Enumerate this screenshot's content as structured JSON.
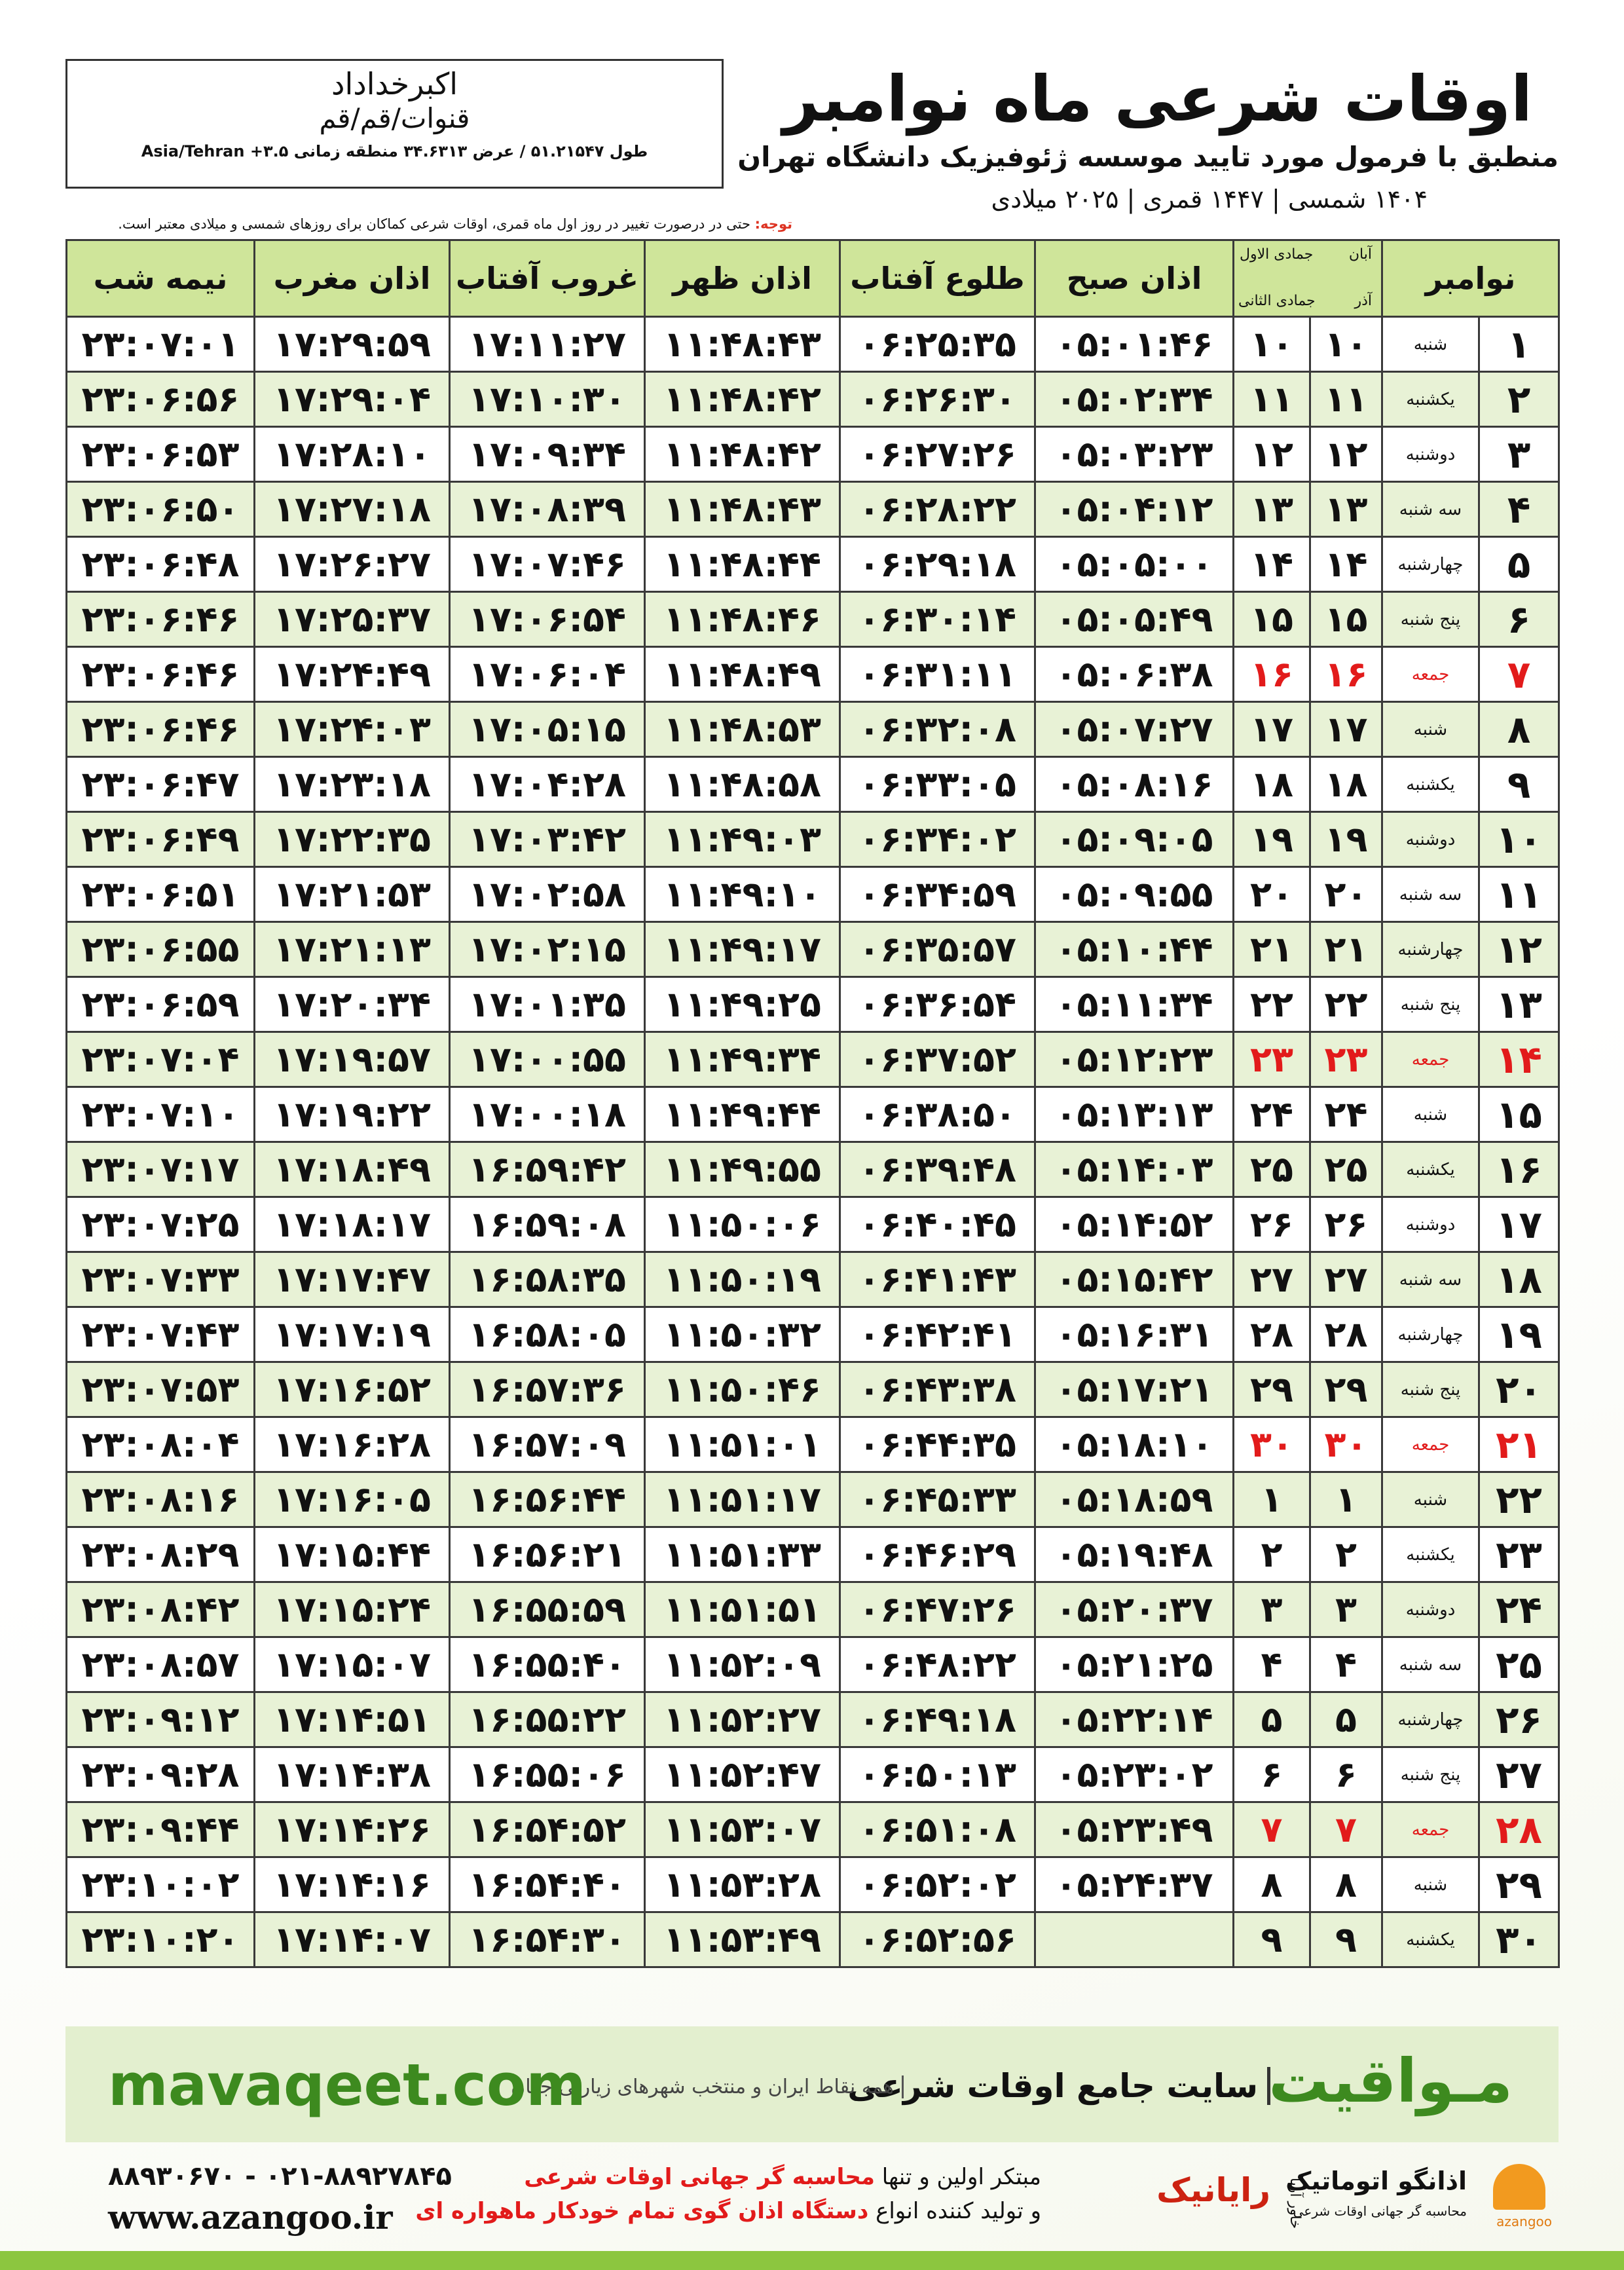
{
  "header": {
    "title": "اوقات شرعی ماه نوامبر",
    "subtitle": "منطبق با فرمول مورد تایید موسسه ژئوفیزیک دانشگاه تهران",
    "dates": "۱۴۰۴ شمسی | ۱۴۴۷ قمری | ۲۰۲۵ میلادی"
  },
  "location": {
    "name": "اکبرخداداد",
    "place": "قنوات/قم/قم",
    "coords": "طول ۵۱.۲۱۵۴۷ / عرض ۳۴.۶۳۱۳ منطقه زمانی ۳.۵+ Asia/Tehran"
  },
  "note": {
    "label": "توجه:",
    "text": "حتی در درصورت تغییر در روز اول ماه قمری، اوقات شرعی کماکان برای روزهای شمسی و میلادی معتبر است."
  },
  "table": {
    "headers": {
      "month": "نوامبر",
      "solar": [
        "آبان",
        "آذر"
      ],
      "lunar": [
        "جمادی الاول",
        "جمادی الثانی"
      ],
      "times": [
        "اذان صبح",
        "طلوع آفتاب",
        "اذان ظهر",
        "غروب آفتاب",
        "اذان مغرب",
        "نیمه شب"
      ]
    },
    "rows": [
      {
        "cells": [
          "۱",
          "شنبه",
          "۱۰",
          "۱۰",
          "۰۵:۰۱:۴۶",
          "۰۶:۲۵:۳۵",
          "۱۱:۴۸:۴۳",
          "۱۷:۱۱:۲۷",
          "۱۷:۲۹:۵۹",
          "۲۳:۰۷:۰۱"
        ]
      },
      {
        "cells": [
          "۲",
          "یکشنبه",
          "۱۱",
          "۱۱",
          "۰۵:۰۲:۳۴",
          "۰۶:۲۶:۳۰",
          "۱۱:۴۸:۴۲",
          "۱۷:۱۰:۳۰",
          "۱۷:۲۹:۰۴",
          "۲۳:۰۶:۵۶"
        ]
      },
      {
        "cells": [
          "۳",
          "دوشنبه",
          "۱۲",
          "۱۲",
          "۰۵:۰۳:۲۳",
          "۰۶:۲۷:۲۶",
          "۱۱:۴۸:۴۲",
          "۱۷:۰۹:۳۴",
          "۱۷:۲۸:۱۰",
          "۲۳:۰۶:۵۳"
        ]
      },
      {
        "cells": [
          "۴",
          "سه شنبه",
          "۱۳",
          "۱۳",
          "۰۵:۰۴:۱۲",
          "۰۶:۲۸:۲۲",
          "۱۱:۴۸:۴۳",
          "۱۷:۰۸:۳۹",
          "۱۷:۲۷:۱۸",
          "۲۳:۰۶:۵۰"
        ]
      },
      {
        "cells": [
          "۵",
          "چهارشنبه",
          "۱۴",
          "۱۴",
          "۰۵:۰۵:۰۰",
          "۰۶:۲۹:۱۸",
          "۱۱:۴۸:۴۴",
          "۱۷:۰۷:۴۶",
          "۱۷:۲۶:۲۷",
          "۲۳:۰۶:۴۸"
        ]
      },
      {
        "cells": [
          "۶",
          "پنج شنبه",
          "۱۵",
          "۱۵",
          "۰۵:۰۵:۴۹",
          "۰۶:۳۰:۱۴",
          "۱۱:۴۸:۴۶",
          "۱۷:۰۶:۵۴",
          "۱۷:۲۵:۳۷",
          "۲۳:۰۶:۴۶"
        ]
      },
      {
        "cells": [
          "۷",
          "جمعه",
          "۱۶",
          "۱۶",
          "۰۵:۰۶:۳۸",
          "۰۶:۳۱:۱۱",
          "۱۱:۴۸:۴۹",
          "۱۷:۰۶:۰۴",
          "۱۷:۲۴:۴۹",
          "۲۳:۰۶:۴۶"
        ],
        "color": "#e21b1b"
      },
      {
        "cells": [
          "۸",
          "شنبه",
          "۱۷",
          "۱۷",
          "۰۵:۰۷:۲۷",
          "۰۶:۳۲:۰۸",
          "۱۱:۴۸:۵۳",
          "۱۷:۰۵:۱۵",
          "۱۷:۲۴:۰۳",
          "۲۳:۰۶:۴۶"
        ]
      },
      {
        "cells": [
          "۹",
          "یکشنبه",
          "۱۸",
          "۱۸",
          "۰۵:۰۸:۱۶",
          "۰۶:۳۳:۰۵",
          "۱۱:۴۸:۵۸",
          "۱۷:۰۴:۲۸",
          "۱۷:۲۳:۱۸",
          "۲۳:۰۶:۴۷"
        ]
      },
      {
        "cells": [
          "۱۰",
          "دوشنبه",
          "۱۹",
          "۱۹",
          "۰۵:۰۹:۰۵",
          "۰۶:۳۴:۰۲",
          "۱۱:۴۹:۰۳",
          "۱۷:۰۳:۴۲",
          "۱۷:۲۲:۳۵",
          "۲۳:۰۶:۴۹"
        ]
      },
      {
        "cells": [
          "۱۱",
          "سه شنبه",
          "۲۰",
          "۲۰",
          "۰۵:۰۹:۵۵",
          "۰۶:۳۴:۵۹",
          "۱۱:۴۹:۱۰",
          "۱۷:۰۲:۵۸",
          "۱۷:۲۱:۵۳",
          "۲۳:۰۶:۵۱"
        ]
      },
      {
        "cells": [
          "۱۲",
          "چهارشنبه",
          "۲۱",
          "۲۱",
          "۰۵:۱۰:۴۴",
          "۰۶:۳۵:۵۷",
          "۱۱:۴۹:۱۷",
          "۱۷:۰۲:۱۵",
          "۱۷:۲۱:۱۳",
          "۲۳:۰۶:۵۵"
        ]
      },
      {
        "cells": [
          "۱۳",
          "پنج شنبه",
          "۲۲",
          "۲۲",
          "۰۵:۱۱:۳۴",
          "۰۶:۳۶:۵۴",
          "۱۱:۴۹:۲۵",
          "۱۷:۰۱:۳۵",
          "۱۷:۲۰:۳۴",
          "۲۳:۰۶:۵۹"
        ]
      },
      {
        "cells": [
          "۱۴",
          "جمعه",
          "۲۳",
          "۲۳",
          "۰۵:۱۲:۲۳",
          "۰۶:۳۷:۵۲",
          "۱۱:۴۹:۳۴",
          "۱۷:۰۰:۵۵",
          "۱۷:۱۹:۵۷",
          "۲۳:۰۷:۰۴"
        ],
        "color": "#e21b1b"
      },
      {
        "cells": [
          "۱۵",
          "شنبه",
          "۲۴",
          "۲۴",
          "۰۵:۱۳:۱۳",
          "۰۶:۳۸:۵۰",
          "۱۱:۴۹:۴۴",
          "۱۷:۰۰:۱۸",
          "۱۷:۱۹:۲۲",
          "۲۳:۰۷:۱۰"
        ]
      },
      {
        "cells": [
          "۱۶",
          "یکشنبه",
          "۲۵",
          "۲۵",
          "۰۵:۱۴:۰۳",
          "۰۶:۳۹:۴۸",
          "۱۱:۴۹:۵۵",
          "۱۶:۵۹:۴۲",
          "۱۷:۱۸:۴۹",
          "۲۳:۰۷:۱۷"
        ]
      },
      {
        "cells": [
          "۱۷",
          "دوشنبه",
          "۲۶",
          "۲۶",
          "۰۵:۱۴:۵۲",
          "۰۶:۴۰:۴۵",
          "۱۱:۵۰:۰۶",
          "۱۶:۵۹:۰۸",
          "۱۷:۱۸:۱۷",
          "۲۳:۰۷:۲۵"
        ]
      },
      {
        "cells": [
          "۱۸",
          "سه شنبه",
          "۲۷",
          "۲۷",
          "۰۵:۱۵:۴۲",
          "۰۶:۴۱:۴۳",
          "۱۱:۵۰:۱۹",
          "۱۶:۵۸:۳۵",
          "۱۷:۱۷:۴۷",
          "۲۳:۰۷:۳۳"
        ]
      },
      {
        "cells": [
          "۱۹",
          "چهارشنبه",
          "۲۸",
          "۲۸",
          "۰۵:۱۶:۳۱",
          "۰۶:۴۲:۴۱",
          "۱۱:۵۰:۳۲",
          "۱۶:۵۸:۰۵",
          "۱۷:۱۷:۱۹",
          "۲۳:۰۷:۴۳"
        ]
      },
      {
        "cells": [
          "۲۰",
          "پنج شنبه",
          "۲۹",
          "۲۹",
          "۰۵:۱۷:۲۱",
          "۰۶:۴۳:۳۸",
          "۱۱:۵۰:۴۶",
          "۱۶:۵۷:۳۶",
          "۱۷:۱۶:۵۲",
          "۲۳:۰۷:۵۳"
        ]
      },
      {
        "cells": [
          "۲۱",
          "جمعه",
          "۳۰",
          "۳۰",
          "۰۵:۱۸:۱۰",
          "۰۶:۴۴:۳۵",
          "۱۱:۵۱:۰۱",
          "۱۶:۵۷:۰۹",
          "۱۷:۱۶:۲۸",
          "۲۳:۰۸:۰۴"
        ],
        "color": "#e21b1b"
      },
      {
        "cells": [
          "۲۲",
          "شنبه",
          "۱",
          "۱",
          "۰۵:۱۸:۵۹",
          "۰۶:۴۵:۳۳",
          "۱۱:۵۱:۱۷",
          "۱۶:۵۶:۴۴",
          "۱۷:۱۶:۰۵",
          "۲۳:۰۸:۱۶"
        ]
      },
      {
        "cells": [
          "۲۳",
          "یکشنبه",
          "۲",
          "۲",
          "۰۵:۱۹:۴۸",
          "۰۶:۴۶:۲۹",
          "۱۱:۵۱:۳۳",
          "۱۶:۵۶:۲۱",
          "۱۷:۱۵:۴۴",
          "۲۳:۰۸:۲۹"
        ]
      },
      {
        "cells": [
          "۲۴",
          "دوشنبه",
          "۳",
          "۳",
          "۰۵:۲۰:۳۷",
          "۰۶:۴۷:۲۶",
          "۱۱:۵۱:۵۱",
          "۱۶:۵۵:۵۹",
          "۱۷:۱۵:۲۴",
          "۲۳:۰۸:۴۲"
        ]
      },
      {
        "cells": [
          "۲۵",
          "سه شنبه",
          "۴",
          "۴",
          "۰۵:۲۱:۲۵",
          "۰۶:۴۸:۲۲",
          "۱۱:۵۲:۰۹",
          "۱۶:۵۵:۴۰",
          "۱۷:۱۵:۰۷",
          "۲۳:۰۸:۵۷"
        ]
      },
      {
        "cells": [
          "۲۶",
          "چهارشنبه",
          "۵",
          "۵",
          "۰۵:۲۲:۱۴",
          "۰۶:۴۹:۱۸",
          "۱۱:۵۲:۲۷",
          "۱۶:۵۵:۲۲",
          "۱۷:۱۴:۵۱",
          "۲۳:۰۹:۱۲"
        ]
      },
      {
        "cells": [
          "۲۷",
          "پنج شنبه",
          "۶",
          "۶",
          "۰۵:۲۳:۰۲",
          "۰۶:۵۰:۱۳",
          "۱۱:۵۲:۴۷",
          "۱۶:۵۵:۰۶",
          "۱۷:۱۴:۳۸",
          "۲۳:۰۹:۲۸"
        ]
      },
      {
        "cells": [
          "۲۸",
          "جمعه",
          "۷",
          "۷",
          "۰۵:۲۳:۴۹",
          "۰۶:۵۱:۰۸",
          "۱۱:۵۳:۰۷",
          "۱۶:۵۴:۵۲",
          "۱۷:۱۴:۲۶",
          "۲۳:۰۹:۴۴"
        ],
        "color": "#e21b1b"
      },
      {
        "cells": [
          "۲۹",
          "شنبه",
          "۸",
          "۸",
          "۰۵:۲۴:۳۷",
          "۰۶:۵۲:۰۲",
          "۱۱:۵۳:۲۸",
          "۱۶:۵۴:۴۰",
          "۱۷:۱۴:۱۶",
          "۲۳:۱۰:۰۲"
        ]
      },
      {
        "cells": [
          "۳۰",
          "یکشنبه",
          "۹",
          "۹",
          null,
          "۰۶:۵۲:۵۶",
          "۱۱:۵۳:۴۹",
          "۱۶:۵۴:۳۰",
          "۱۷:۱۴:۰۷",
          "۲۳:۱۰:۲۰"
        ]
      }
    ]
  },
  "banner": {
    "brand": "مـواقیت",
    "slogan": "سایت جامع اوقات شرعی",
    "coverage": "همه نقاط ایران و منتخب شهرهای زیارتی جهان",
    "url": "mavaqeet.com"
  },
  "contact": {
    "phone": "۰۲۱-۸۸۹۲۷۸۴۵ - ۸۸۹۳۰۶۷۰",
    "url": "www.azangoo.ir",
    "line1": [
      "مبتکر اولین و تنها",
      "محاسبه گر جهانی اوقات شرعی"
    ],
    "line2": [
      "و تولید کننده انواع",
      "دستگاه اذان گوی تمام خودکار ماهواره ای"
    ],
    "logos": {
      "rayanik": "رایانیک",
      "khavar": "خاور آریا",
      "azangoo": "اذانگو اتوماتیک",
      "azangoo_sub": "محاسبه گر جهانی اوقات شرعی",
      "azangoo_en": "azangoo"
    }
  }
}
